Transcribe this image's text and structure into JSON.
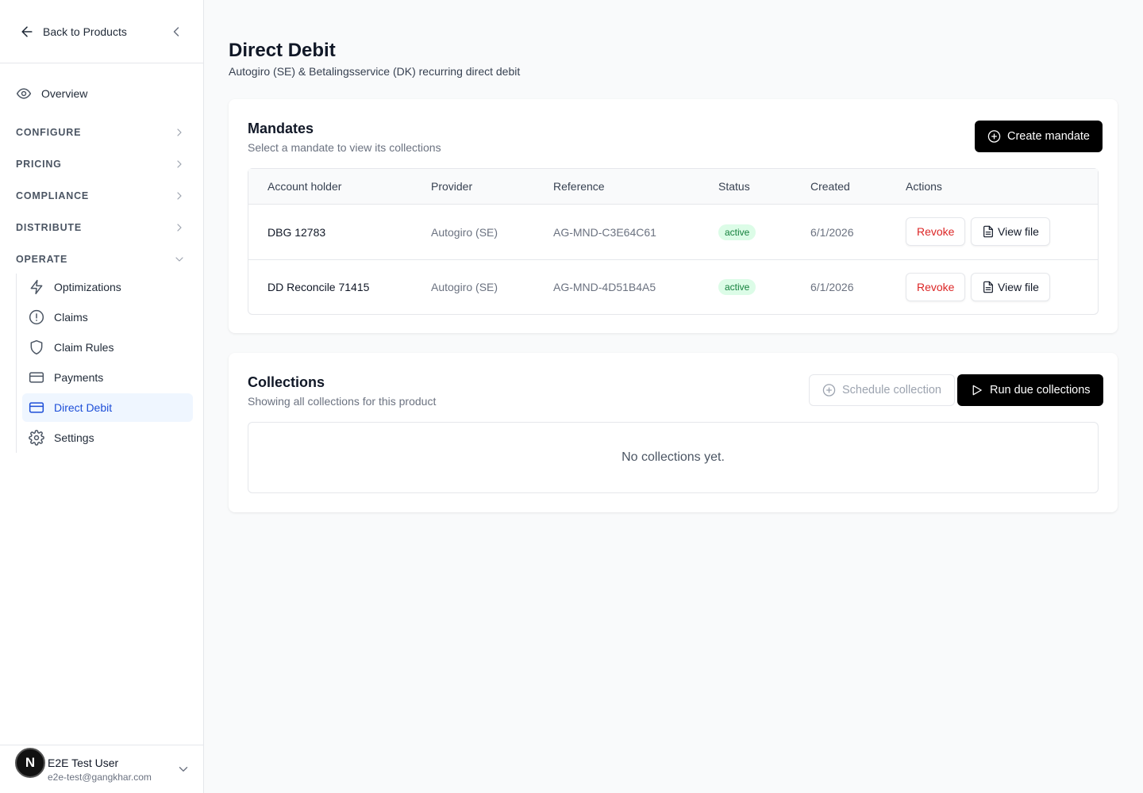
{
  "sidebar": {
    "back": "Back to Products",
    "overview": "Overview",
    "sections": [
      "CONFIGURE",
      "PRICING",
      "COMPLIANCE",
      "DISTRIBUTE",
      "OPERATE"
    ],
    "operate_items": [
      "Optimizations",
      "Claims",
      "Claim Rules",
      "Payments",
      "Direct Debit",
      "Settings"
    ],
    "user": {
      "avatar": "N",
      "name": "E2E Test User",
      "email": "e2e-test@gangkhar.com"
    }
  },
  "header": {
    "title": "Direct Debit",
    "subtitle": "Autogiro (SE) & Betalingsservice (DK) recurring direct debit"
  },
  "mandates": {
    "title": "Mandates",
    "subtitle": "Select a mandate to view its collections",
    "create_button": "Create mandate",
    "columns": [
      "Account holder",
      "Provider",
      "Reference",
      "Status",
      "Created",
      "Actions"
    ],
    "rows": [
      {
        "account_holder": "DBG 12783",
        "provider": "Autogiro (SE)",
        "reference": "AG-MND-C3E64C61",
        "status": "active",
        "created": "6/1/2026",
        "actions": [
          "Revoke",
          "View file"
        ]
      },
      {
        "account_holder": "DD Reconcile 71415",
        "provider": "Autogiro (SE)",
        "reference": "AG-MND-4D51B4A5",
        "status": "active",
        "created": "6/1/2026",
        "actions": [
          "Revoke",
          "View file"
        ]
      }
    ]
  },
  "collections": {
    "title": "Collections",
    "subtitle": "Showing all collections for this product",
    "schedule_button": "Schedule collection",
    "run_button": "Run due collections",
    "empty": "No collections yet."
  }
}
